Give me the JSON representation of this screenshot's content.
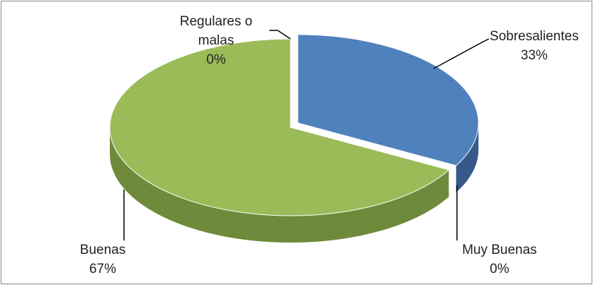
{
  "chart_data": {
    "type": "pie3d",
    "categories": [
      "Sobresalientes",
      "Muy Buenas",
      "Buenas",
      "Regulares o malas"
    ],
    "values": [
      33,
      0,
      67,
      0
    ],
    "value_labels": [
      "33%",
      "0%",
      "67%",
      "0%"
    ],
    "colors": [
      "#4f81bd",
      "#943634",
      "#9bbb59",
      "#d99694"
    ],
    "side_colors": [
      "#36598a",
      "#5c1f1e",
      "#6f8a3a",
      "#a86a68"
    ]
  }
}
